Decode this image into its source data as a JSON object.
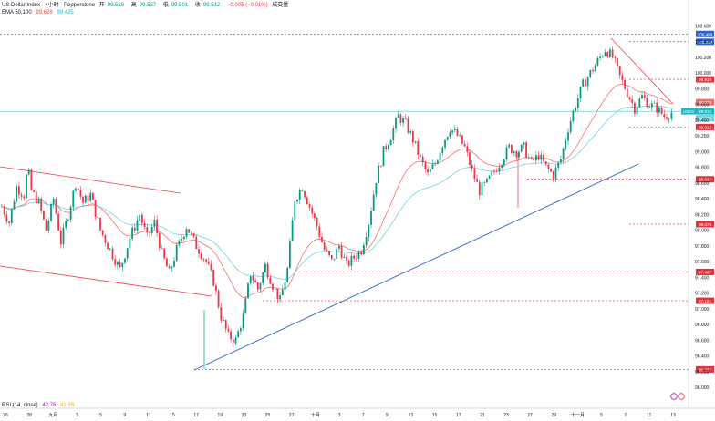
{
  "header": {
    "symbol": "US Dollar Index · 4小时 · Pepperstone",
    "ohlc": [
      {
        "label": "开",
        "value": "99.510"
      },
      {
        "label": "高",
        "value": "99.527"
      },
      {
        "label": "低",
        "value": "99.501"
      },
      {
        "label": "收",
        "value": "99.512"
      }
    ],
    "change": "−0.005 (−0.01%)",
    "volume_label": "成交量",
    "ema_label": "EMA 50,100",
    "ema_values": [
      "99.628",
      "99.425"
    ]
  },
  "rsi": {
    "label": "RSI (14, close)",
    "values": [
      "42.76",
      "41.38"
    ]
  },
  "colors": {
    "up": "#089981",
    "down": "#f23645",
    "ema50": "#f56f6a",
    "ema100": "#6fd3e0",
    "trendline": "#2f62c9",
    "channel": "#f03a47",
    "level": "#e0353f",
    "resistance": "#2f62c9",
    "current": "#23b5c7",
    "axis_text": "#131722"
  },
  "chart_data": {
    "type": "candlestick",
    "y_axis_ticks": [
      "100.600",
      "100.400",
      "100.200",
      "100.000",
      "99.800",
      "99.600",
      "99.400",
      "99.200",
      "99.000",
      "98.800",
      "98.600",
      "98.400",
      "98.200",
      "98.000",
      "97.800",
      "97.600",
      "97.400",
      "97.200",
      "97.000",
      "96.800",
      "96.600",
      "96.400",
      "96.200",
      "96.000"
    ],
    "x_axis_ticks": [
      "26",
      "28",
      "九月",
      "3",
      "5",
      "9",
      "11",
      "15",
      "17",
      "19",
      "23",
      "25",
      "27",
      "十月",
      "3",
      "7",
      "9",
      "13",
      "15",
      "17",
      "21",
      "23",
      "27",
      "29",
      "十一月",
      "5",
      "7",
      "11",
      "13"
    ],
    "ylim": [
      96.0,
      100.65
    ],
    "price_labels": [
      {
        "value": "100.496",
        "kind": "resistance"
      },
      {
        "value": "100.397",
        "kind": "resistance"
      },
      {
        "value": "99.919",
        "kind": "level"
      },
      {
        "value": "99.628",
        "kind": "ema50"
      },
      {
        "value": "99.512",
        "kind": "current"
      },
      {
        "value": "99.425",
        "kind": "ema100"
      },
      {
        "value": "99.312",
        "kind": "level"
      },
      {
        "value": "98.647",
        "kind": "level"
      },
      {
        "value": "98.076",
        "kind": "level"
      },
      {
        "value": "97.467",
        "kind": "level"
      },
      {
        "value": "97.101",
        "kind": "level"
      },
      {
        "value": "96.227",
        "kind": "level"
      }
    ],
    "current_tag": "USDX",
    "close_path": [
      {
        "x": 0,
        "y": 98.3
      },
      {
        "x": 6,
        "y": 98.1
      },
      {
        "x": 12,
        "y": 98.55
      },
      {
        "x": 18,
        "y": 98.45
      },
      {
        "x": 21,
        "y": 98.8
      },
      {
        "x": 24,
        "y": 98.5
      },
      {
        "x": 30,
        "y": 98.35
      },
      {
        "x": 36,
        "y": 98.0
      },
      {
        "x": 42,
        "y": 98.4
      },
      {
        "x": 48,
        "y": 97.85
      },
      {
        "x": 54,
        "y": 98.2
      },
      {
        "x": 60,
        "y": 98.6
      },
      {
        "x": 66,
        "y": 98.35
      },
      {
        "x": 72,
        "y": 98.45
      },
      {
        "x": 80,
        "y": 98.0
      },
      {
        "x": 88,
        "y": 97.75
      },
      {
        "x": 96,
        "y": 97.5
      },
      {
        "x": 104,
        "y": 97.9
      },
      {
        "x": 112,
        "y": 98.2
      },
      {
        "x": 118,
        "y": 97.9
      },
      {
        "x": 124,
        "y": 98.1
      },
      {
        "x": 130,
        "y": 97.7
      },
      {
        "x": 136,
        "y": 97.45
      },
      {
        "x": 142,
        "y": 97.75
      },
      {
        "x": 150,
        "y": 98.05
      },
      {
        "x": 158,
        "y": 97.8
      },
      {
        "x": 166,
        "y": 97.6
      },
      {
        "x": 172,
        "y": 97.35
      },
      {
        "x": 178,
        "y": 96.9
      },
      {
        "x": 184,
        "y": 96.65
      },
      {
        "x": 190,
        "y": 96.6
      },
      {
        "x": 196,
        "y": 96.9
      },
      {
        "x": 202,
        "y": 97.45
      },
      {
        "x": 208,
        "y": 97.25
      },
      {
        "x": 214,
        "y": 97.55
      },
      {
        "x": 220,
        "y": 97.3
      },
      {
        "x": 226,
        "y": 97.1
      },
      {
        "x": 232,
        "y": 97.5
      },
      {
        "x": 238,
        "y": 98.4
      },
      {
        "x": 244,
        "y": 98.55
      },
      {
        "x": 250,
        "y": 98.3
      },
      {
        "x": 256,
        "y": 98.05
      },
      {
        "x": 262,
        "y": 97.75
      },
      {
        "x": 268,
        "y": 97.6
      },
      {
        "x": 274,
        "y": 97.8
      },
      {
        "x": 280,
        "y": 97.55
      },
      {
        "x": 286,
        "y": 97.65
      },
      {
        "x": 292,
        "y": 97.75
      },
      {
        "x": 298,
        "y": 98.1
      },
      {
        "x": 304,
        "y": 98.65
      },
      {
        "x": 310,
        "y": 99.0
      },
      {
        "x": 316,
        "y": 99.2
      },
      {
        "x": 322,
        "y": 99.45
      },
      {
        "x": 328,
        "y": 99.35
      },
      {
        "x": 334,
        "y": 99.15
      },
      {
        "x": 340,
        "y": 98.9
      },
      {
        "x": 346,
        "y": 98.7
      },
      {
        "x": 352,
        "y": 98.85
      },
      {
        "x": 358,
        "y": 99.1
      },
      {
        "x": 364,
        "y": 99.3
      },
      {
        "x": 370,
        "y": 99.2
      },
      {
        "x": 376,
        "y": 99.05
      },
      {
        "x": 382,
        "y": 98.75
      },
      {
        "x": 388,
        "y": 98.5
      },
      {
        "x": 394,
        "y": 98.6
      },
      {
        "x": 400,
        "y": 98.75
      },
      {
        "x": 406,
        "y": 98.9
      },
      {
        "x": 412,
        "y": 99.05
      },
      {
        "x": 418,
        "y": 99.0
      },
      {
        "x": 424,
        "y": 99.05
      },
      {
        "x": 430,
        "y": 98.85
      },
      {
        "x": 436,
        "y": 98.95
      },
      {
        "x": 442,
        "y": 98.8
      },
      {
        "x": 448,
        "y": 98.7
      },
      {
        "x": 454,
        "y": 98.9
      },
      {
        "x": 460,
        "y": 99.3
      },
      {
        "x": 466,
        "y": 99.6
      },
      {
        "x": 472,
        "y": 99.85
      },
      {
        "x": 478,
        "y": 100.0
      },
      {
        "x": 484,
        "y": 100.15
      },
      {
        "x": 490,
        "y": 100.3
      },
      {
        "x": 496,
        "y": 100.2
      },
      {
        "x": 502,
        "y": 99.95
      },
      {
        "x": 508,
        "y": 99.75
      },
      {
        "x": 514,
        "y": 99.55
      },
      {
        "x": 520,
        "y": 99.7
      },
      {
        "x": 526,
        "y": 99.6
      },
      {
        "x": 532,
        "y": 99.55
      },
      {
        "x": 538,
        "y": 99.45
      },
      {
        "x": 544,
        "y": 99.5
      }
    ]
  }
}
